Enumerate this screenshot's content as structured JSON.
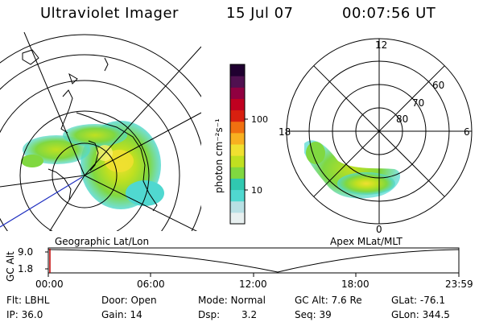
{
  "header": {
    "instrument": "Ultraviolet Imager",
    "date": "15 Jul 07",
    "time": "00:07:56 UT"
  },
  "colorbar": {
    "unit_label": "photon cm⁻²s⁻¹",
    "tick_100": "100",
    "tick_10": "10",
    "colors": [
      "#e8f0f0",
      "#b8e0e4",
      "#50d8d0",
      "#30c8b0",
      "#80d840",
      "#c0e020",
      "#f0e030",
      "#f8b020",
      "#f07010",
      "#d82010",
      "#c00020",
      "#900040",
      "#501050",
      "#200030"
    ]
  },
  "left_map": {
    "caption": "Geographic Lat/Lon"
  },
  "right_map": {
    "caption": "Apex MLat/MLT",
    "mlt_12": "12",
    "mlt_18": "18",
    "mlt_6": "6",
    "mlt_0": "0",
    "lat_60": "60",
    "lat_70": "70",
    "lat_80": "80"
  },
  "altitude_plot": {
    "ylabel": "GC Alt",
    "y_top": "9.0",
    "y_bottom": "1.8",
    "x_ticks": [
      "00:00",
      "06:00",
      "12:00",
      "18:00",
      "23:59"
    ]
  },
  "info": {
    "flt": "Flt: LBHL",
    "ip": "IP: 36.0",
    "door": "Door: Open",
    "gain": "Gain: 14",
    "mode": "Mode: Normal",
    "dsp_label": "Dsp:",
    "dsp_value": "3.2",
    "gc_alt": "GC Alt: 7.6 Re",
    "seq": "Seq: 39",
    "glat": "GLat: -76.1",
    "glon": "GLon: 344.5"
  }
}
